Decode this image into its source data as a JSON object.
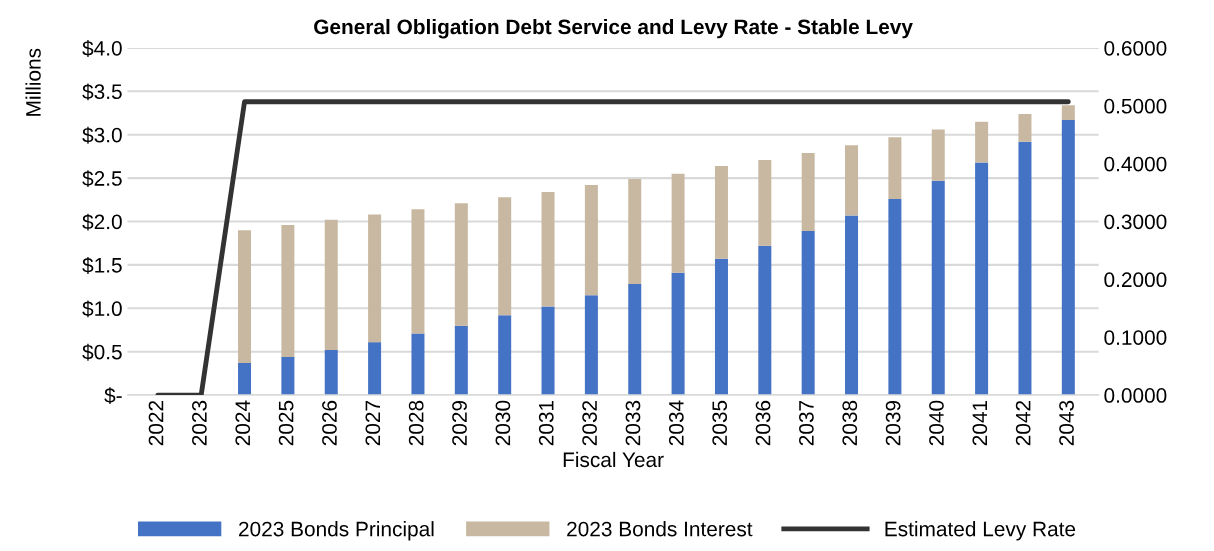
{
  "chart_data": {
    "type": "bar",
    "title": "General Obligation Debt Service and Levy Rate - Stable Levy",
    "xlabel": "Fiscal Year",
    "ylabel": "Millions",
    "categories": [
      "2022",
      "2023",
      "2024",
      "2025",
      "2026",
      "2027",
      "2028",
      "2029",
      "2030",
      "2031",
      "2032",
      "2033",
      "2034",
      "2035",
      "2036",
      "2037",
      "2038",
      "2039",
      "2040",
      "2041",
      "2042",
      "2043"
    ],
    "stacked": true,
    "series": [
      {
        "name": "2023 Bonds Principal",
        "color": "#4472c4",
        "values": [
          0,
          0,
          0.37,
          0.44,
          0.52,
          0.61,
          0.71,
          0.8,
          0.92,
          1.02,
          1.15,
          1.28,
          1.41,
          1.57,
          1.72,
          1.89,
          2.07,
          2.26,
          2.47,
          2.68,
          2.92,
          3.17
        ]
      },
      {
        "name": "2023 Bonds Interest",
        "color": "#c8b8a2",
        "values": [
          0,
          0,
          1.53,
          1.52,
          1.5,
          1.47,
          1.43,
          1.41,
          1.36,
          1.32,
          1.27,
          1.21,
          1.14,
          1.07,
          0.99,
          0.9,
          0.81,
          0.71,
          0.59,
          0.47,
          0.32,
          0.17
        ]
      },
      {
        "name": "Estimated Levy Rate",
        "type": "line",
        "axis": "y2",
        "color": "#333333",
        "values": [
          0,
          0,
          0.507,
          0.507,
          0.507,
          0.507,
          0.507,
          0.507,
          0.507,
          0.507,
          0.507,
          0.507,
          0.507,
          0.507,
          0.507,
          0.507,
          0.507,
          0.507,
          0.507,
          0.507,
          0.507,
          0.507
        ]
      }
    ],
    "ylim": [
      0,
      4.0
    ],
    "yticks": [
      {
        "value": 0,
        "label": "$-"
      },
      {
        "value": 0.5,
        "label": "$0.5"
      },
      {
        "value": 1.0,
        "label": "$1.0"
      },
      {
        "value": 1.5,
        "label": "$1.5"
      },
      {
        "value": 2.0,
        "label": "$2.0"
      },
      {
        "value": 2.5,
        "label": "$2.5"
      },
      {
        "value": 3.0,
        "label": "$3.0"
      },
      {
        "value": 3.5,
        "label": "$3.5"
      },
      {
        "value": 4.0,
        "label": "$4.0"
      }
    ],
    "y2lim": [
      0,
      0.6
    ],
    "y2ticks": [
      {
        "value": 0,
        "label": "0.0000"
      },
      {
        "value": 0.1,
        "label": "0.1000"
      },
      {
        "value": 0.2,
        "label": "0.2000"
      },
      {
        "value": 0.3,
        "label": "0.3000"
      },
      {
        "value": 0.4,
        "label": "0.4000"
      },
      {
        "value": 0.5,
        "label": "0.5000"
      },
      {
        "value": 0.6,
        "label": "0.6000"
      }
    ],
    "grid": "y",
    "legend": "bottom"
  }
}
